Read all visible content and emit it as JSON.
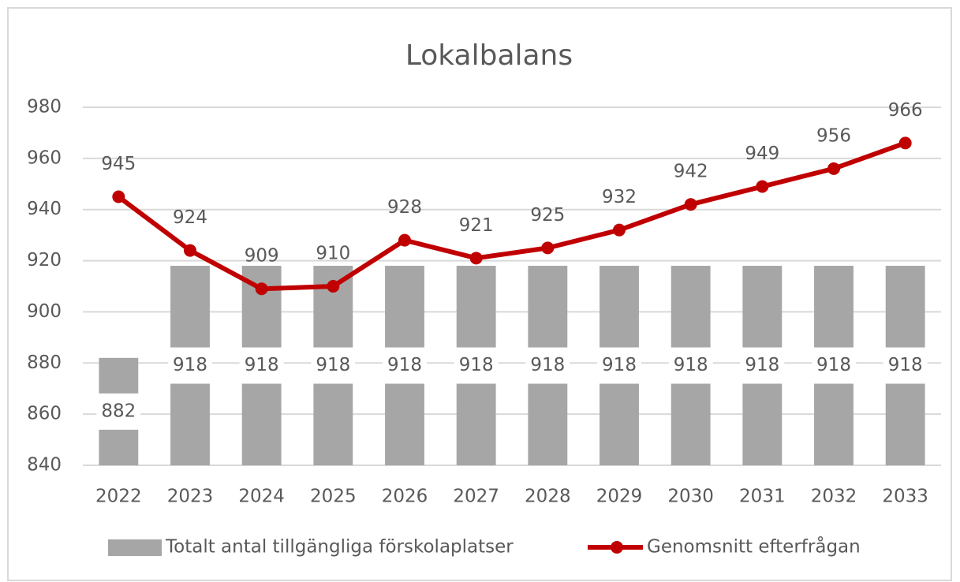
{
  "chart_data": {
    "type": "combo",
    "title": "Lokalbalans",
    "categories": [
      "2022",
      "2023",
      "2024",
      "2025",
      "2026",
      "2027",
      "2028",
      "2029",
      "2030",
      "2031",
      "2032",
      "2033"
    ],
    "series": [
      {
        "name": "Totalt antal tillgängliga förskolaplatser",
        "type": "bar",
        "color": "#a6a6a6",
        "values": [
          882,
          918,
          918,
          918,
          918,
          918,
          918,
          918,
          918,
          918,
          918,
          918
        ]
      },
      {
        "name": "Genomsnitt efterfrågan",
        "type": "line",
        "color": "#c00000",
        "values": [
          945,
          924,
          909,
          910,
          928,
          921,
          925,
          932,
          942,
          949,
          956,
          966
        ]
      }
    ],
    "ylim": [
      840,
      980
    ],
    "yticks": [
      840,
      860,
      880,
      900,
      920,
      940,
      960,
      980
    ],
    "grid": true,
    "legend": "bottom"
  }
}
